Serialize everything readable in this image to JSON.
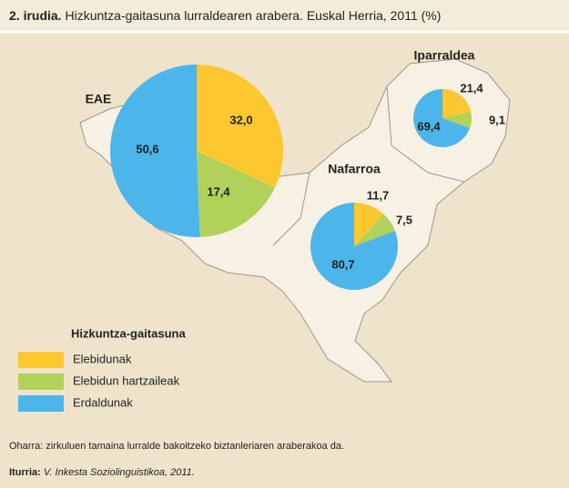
{
  "header": {
    "label": "2. irudia.",
    "title": "Hizkuntza-gaitasuna lurraldearen arabera. Euskal Herria, 2011 (%)"
  },
  "legend": {
    "title": "Hizkuntza-gaitasuna",
    "items": [
      {
        "name": "Elebidunak",
        "color": "#fdc82f"
      },
      {
        "name": "Elebidun hartzaileak",
        "color": "#b1d25a"
      },
      {
        "name": "Erdaldunak",
        "color": "#4cb6ea"
      }
    ]
  },
  "chart_data": [
    {
      "type": "pie",
      "title": "EAE",
      "values": [
        32.0,
        17.4,
        50.6
      ],
      "value_labels": [
        "32,0",
        "17,4",
        "50,6"
      ]
    },
    {
      "type": "pie",
      "title": "Iparraldea",
      "values": [
        21.4,
        9.1,
        69.4
      ],
      "value_labels": [
        "21,4",
        "9,1",
        "69,4"
      ]
    },
    {
      "type": "pie",
      "title": "Nafarroa",
      "values": [
        11.7,
        7.5,
        80.7
      ],
      "value_labels": [
        "11,7",
        "7,5",
        "80,7"
      ]
    }
  ],
  "note": "Oharra: zirkuluen tamaina lurralde bakoitzeko biztanleriaren araberakoa da.",
  "source": {
    "label": "Iturria:",
    "text": "V. Inkesta Soziolinguistikoa, 2011."
  }
}
